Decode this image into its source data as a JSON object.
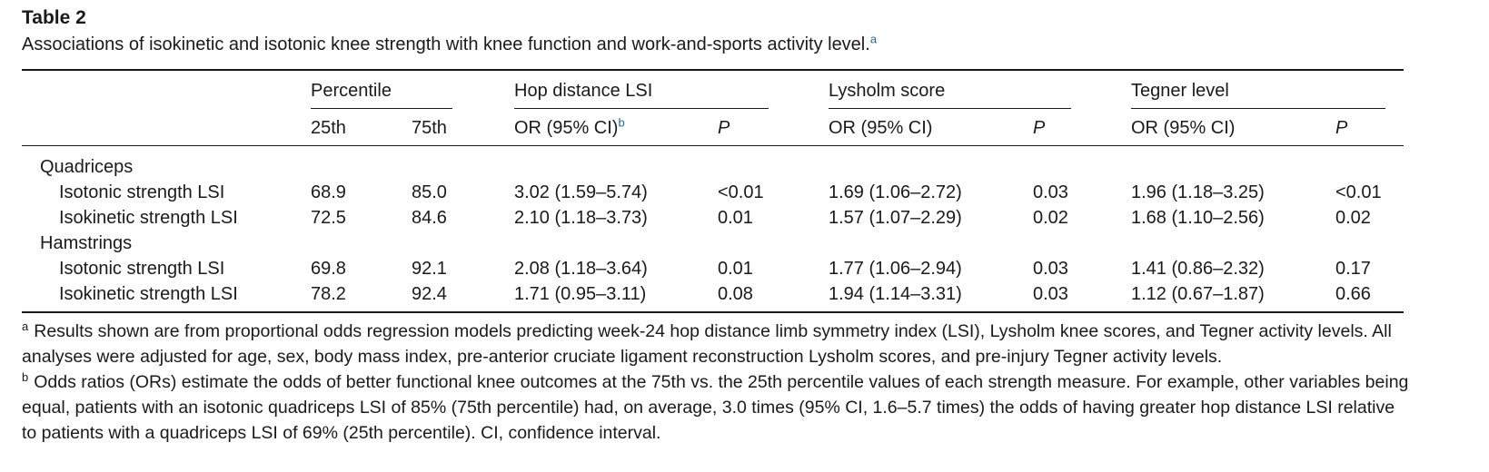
{
  "table": {
    "label": "Table 2",
    "caption": "Associations of isokinetic and isotonic knee strength with knee function and work-and-sports activity level.",
    "caption_sup": "a",
    "group_headers": [
      "Percentile",
      "Hop distance LSI",
      "Lysholm score",
      "Tegner level"
    ],
    "columns": [
      "25th",
      "75th",
      "OR (95% CI)",
      "P",
      "OR (95% CI)",
      "P",
      "OR (95% CI)",
      "P"
    ],
    "col2_sup": "b",
    "sections": [
      {
        "name": "Quadriceps",
        "rows": [
          {
            "label": "Isotonic strength LSI",
            "cells": [
              "68.9",
              "85.0",
              "3.02 (1.59–5.74)",
              "<0.01",
              "1.69 (1.06–2.72)",
              "0.03",
              "1.96 (1.18–3.25)",
              "<0.01"
            ]
          },
          {
            "label": "Isokinetic strength LSI",
            "cells": [
              "72.5",
              "84.6",
              "2.10 (1.18–3.73)",
              "0.01",
              "1.57 (1.07–2.29)",
              "0.02",
              "1.68 (1.10–2.56)",
              "0.02"
            ]
          }
        ]
      },
      {
        "name": "Hamstrings",
        "rows": [
          {
            "label": "Isotonic strength LSI",
            "cells": [
              "69.8",
              "92.1",
              "2.08 (1.18–3.64)",
              "0.01",
              "1.77 (1.06–2.94)",
              "0.03",
              "1.41 (0.86–2.32)",
              "0.17"
            ]
          },
          {
            "label": "Isokinetic strength LSI",
            "cells": [
              "78.2",
              "92.4",
              "1.71 (0.95–3.11)",
              "0.08",
              "1.94 (1.14–3.31)",
              "0.03",
              "1.12 (0.67–1.87)",
              "0.66"
            ]
          }
        ]
      }
    ],
    "footnotes": [
      {
        "mark": "a",
        "text": "Results shown are from proportional odds regression models predicting week-24 hop distance limb symmetry index (LSI), Lysholm knee scores, and Tegner activity levels. All analyses were adjusted for age, sex, body mass index, pre-anterior cruciate ligament reconstruction Lysholm scores, and pre-injury Tegner activity levels."
      },
      {
        "mark": "b",
        "text": "Odds ratios (ORs) estimate the odds of better functional knee outcomes at the 75th vs. the 25th percentile values of each strength measure. For example, other variables being equal, patients with an isotonic quadriceps LSI of 85% (75th percentile) had, on average, 3.0 times (95% CI, 1.6–5.7 times) the odds of having greater hop distance LSI relative to patients with a quadriceps LSI of 69% (25th percentile). CI, confidence interval."
      }
    ]
  }
}
